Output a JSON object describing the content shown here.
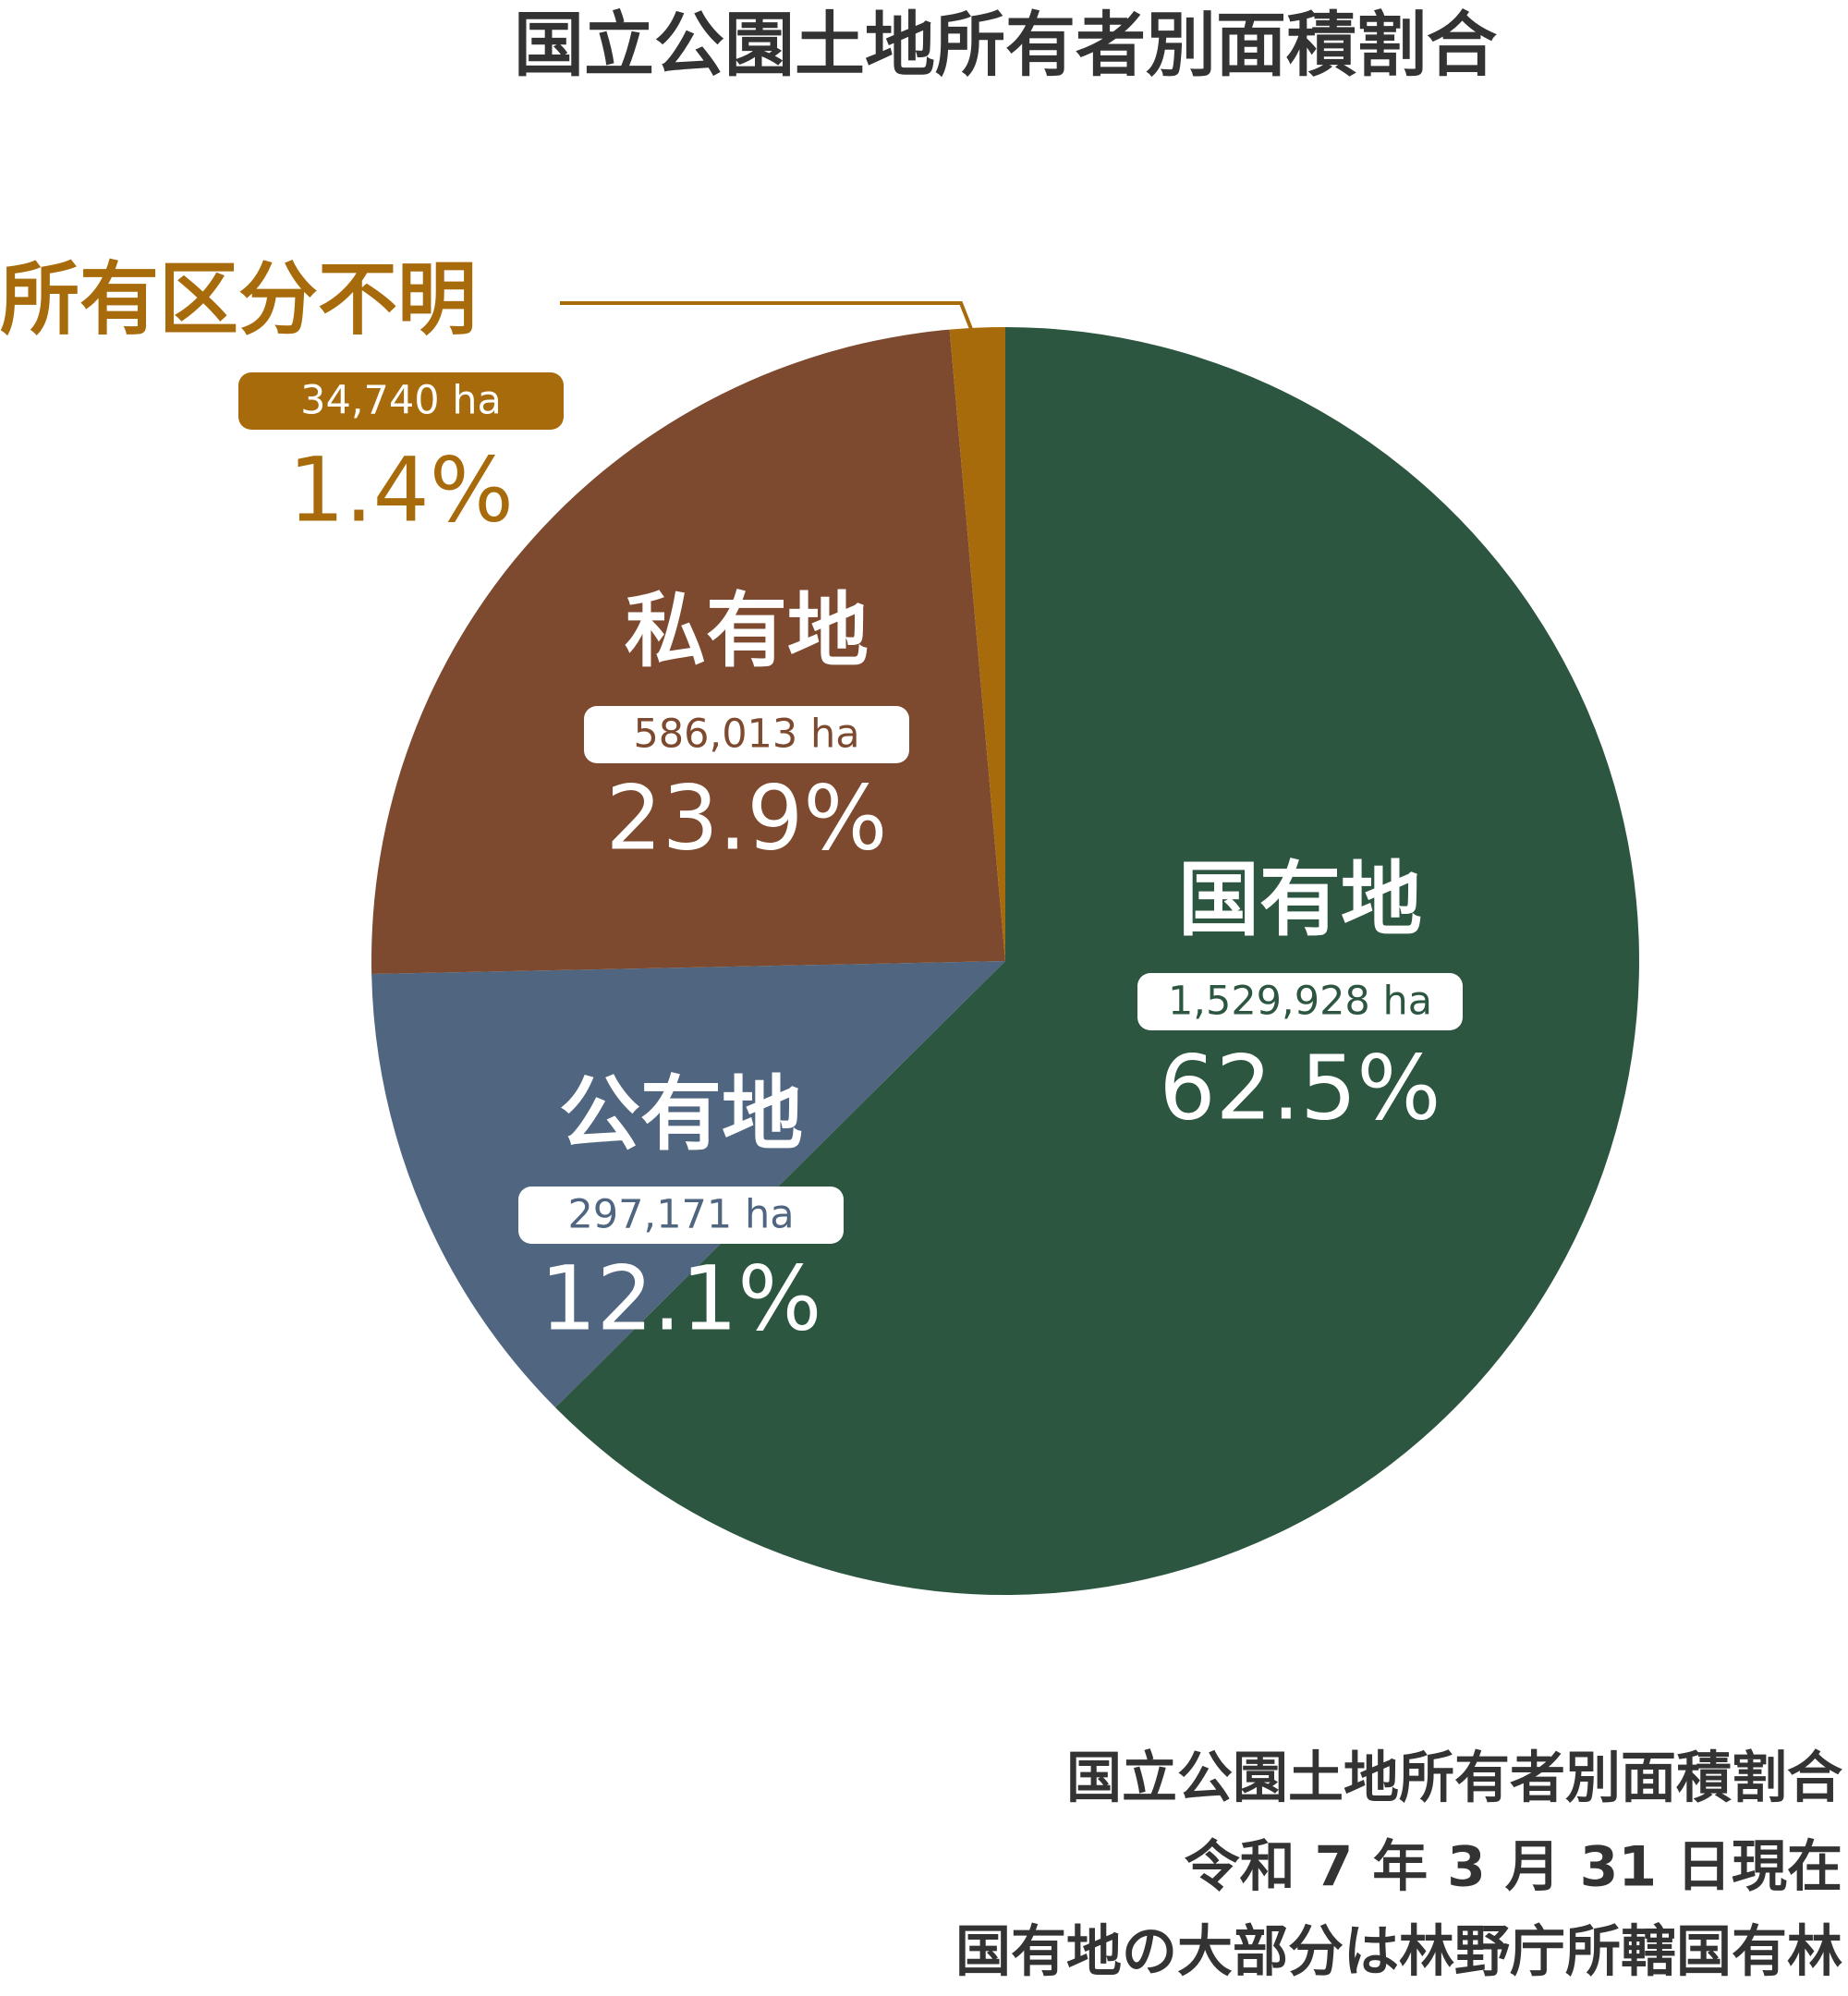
{
  "chart_data": {
    "type": "pie",
    "title": "国立公園土地所有者別面積割合",
    "categories": [
      "国有地",
      "公有地",
      "私有地",
      "所有区分不明"
    ],
    "values": [
      62.5,
      12.1,
      23.9,
      1.4
    ],
    "value_labels": [
      "62.5%",
      "12.1%",
      "23.9%",
      "1.4%"
    ],
    "area_labels": [
      "1,529,928 ha",
      "297,171 ha",
      "586,013 ha",
      "34,740 ha"
    ],
    "colors": [
      "#2d5640",
      "#4f6580",
      "#7d4a2f",
      "#a86b0b"
    ],
    "notes": [
      "国立公園土地所有者別面積割合",
      "令和 7 年 3 月 31 日現在",
      "国有地の大部分は林野庁所轄国有林"
    ]
  }
}
